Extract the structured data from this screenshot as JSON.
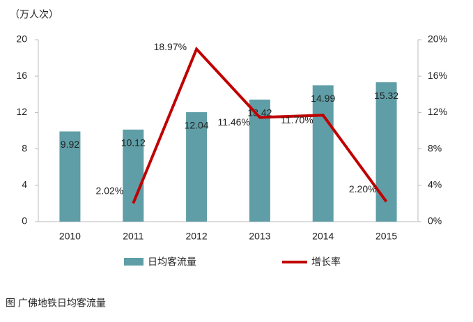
{
  "chart_data": {
    "type": "bar+line",
    "y_axis_label": "（万人次）",
    "caption": "图 广佛地铁日均客流量",
    "categories": [
      "2010",
      "2011",
      "2012",
      "2013",
      "2014",
      "2015"
    ],
    "series": [
      {
        "name": "日均客流量",
        "type": "bar",
        "color": "#5f9ea6",
        "values": [
          9.92,
          10.12,
          12.04,
          13.42,
          14.99,
          15.32
        ]
      },
      {
        "name": "增长率",
        "type": "line",
        "axis": "y2",
        "color": "#c00000",
        "values": [
          null,
          2.02,
          18.97,
          11.46,
          11.7,
          2.2
        ],
        "value_labels": [
          null,
          "2.02%",
          "18.97%",
          "11.46%",
          "11.70%",
          "2.20%"
        ]
      }
    ],
    "ylim": [
      0,
      20
    ],
    "yticks": [
      0,
      4,
      8,
      12,
      16,
      20
    ],
    "y2lim": [
      0,
      20
    ],
    "y2ticks": [
      {
        "value": 0,
        "label": "0%"
      },
      {
        "value": 4,
        "label": "4%"
      },
      {
        "value": 8,
        "label": "8%"
      },
      {
        "value": 12,
        "label": "12%"
      },
      {
        "value": 16,
        "label": "16%"
      },
      {
        "value": 20,
        "label": "20%"
      }
    ],
    "grid": false,
    "legend": "bottom"
  }
}
